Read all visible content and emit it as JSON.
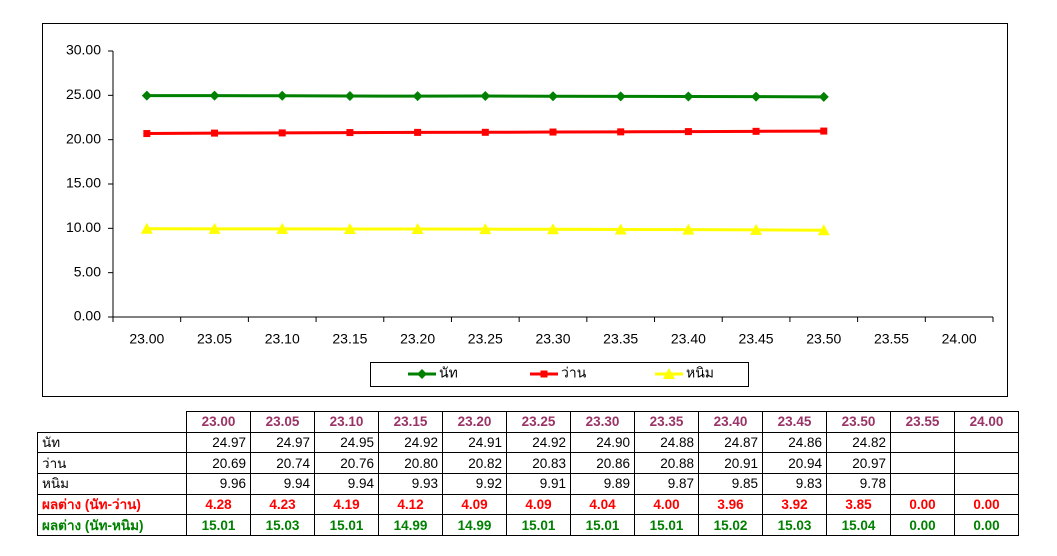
{
  "chart_data": {
    "type": "line",
    "categories": [
      "23.00",
      "23.05",
      "23.10",
      "23.15",
      "23.20",
      "23.25",
      "23.30",
      "23.35",
      "23.40",
      "23.45",
      "23.50",
      "23.55",
      "24.00"
    ],
    "series": [
      {
        "name": "นัท",
        "color": "#008000",
        "marker": "diamond",
        "values": [
          24.97,
          24.97,
          24.95,
          24.92,
          24.91,
          24.92,
          24.9,
          24.88,
          24.87,
          24.86,
          24.82,
          null,
          null
        ]
      },
      {
        "name": "ว่าน",
        "color": "#ff0000",
        "marker": "square",
        "values": [
          20.69,
          20.74,
          20.76,
          20.8,
          20.82,
          20.83,
          20.86,
          20.88,
          20.91,
          20.94,
          20.97,
          null,
          null
        ]
      },
      {
        "name": "หนิม",
        "color": "#ffff00",
        "marker": "triangle",
        "values": [
          9.96,
          9.94,
          9.94,
          9.93,
          9.92,
          9.91,
          9.89,
          9.87,
          9.85,
          9.83,
          9.78,
          null,
          null
        ]
      }
    ],
    "ylim": [
      0,
      30
    ],
    "yticks": [
      {
        "value": 0,
        "label": "0.00"
      },
      {
        "value": 5,
        "label": "5.00"
      },
      {
        "value": 10,
        "label": "10.00"
      },
      {
        "value": 15,
        "label": "15.00"
      },
      {
        "value": 20,
        "label": "20.00"
      },
      {
        "value": 25,
        "label": "25.00"
      },
      {
        "value": 30,
        "label": "30.00"
      }
    ],
    "legend": "bottom",
    "grid": false
  },
  "table": {
    "rows": [
      {
        "label": "นัท",
        "style": "plain",
        "cells": [
          "24.97",
          "24.97",
          "24.95",
          "24.92",
          "24.91",
          "24.92",
          "24.90",
          "24.88",
          "24.87",
          "24.86",
          "24.82",
          null,
          null
        ]
      },
      {
        "label": "ว่าน",
        "style": "plain",
        "cells": [
          "20.69",
          "20.74",
          "20.76",
          "20.80",
          "20.82",
          "20.83",
          "20.86",
          "20.88",
          "20.91",
          "20.94",
          "20.97",
          null,
          null
        ]
      },
      {
        "label": "หนิม",
        "style": "plain",
        "cells": [
          "9.96",
          "9.94",
          "9.94",
          "9.93",
          "9.92",
          "9.91",
          "9.89",
          "9.87",
          "9.85",
          "9.83",
          "9.78",
          null,
          null
        ]
      },
      {
        "label": "ผลต่าง (นัท-ว่าน)",
        "style": "red",
        "cells": [
          "4.28",
          "4.23",
          "4.19",
          "4.12",
          "4.09",
          "4.09",
          "4.04",
          "4.00",
          "3.96",
          "3.92",
          "3.85",
          "0.00",
          "0.00"
        ]
      },
      {
        "label": "ผลต่าง (นัท-หนิม)",
        "style": "green",
        "cells": [
          "15.01",
          "15.03",
          "15.01",
          "14.99",
          "14.99",
          "15.01",
          "15.01",
          "15.01",
          "15.02",
          "15.03",
          "15.04",
          "0.00",
          "0.00"
        ]
      }
    ]
  }
}
